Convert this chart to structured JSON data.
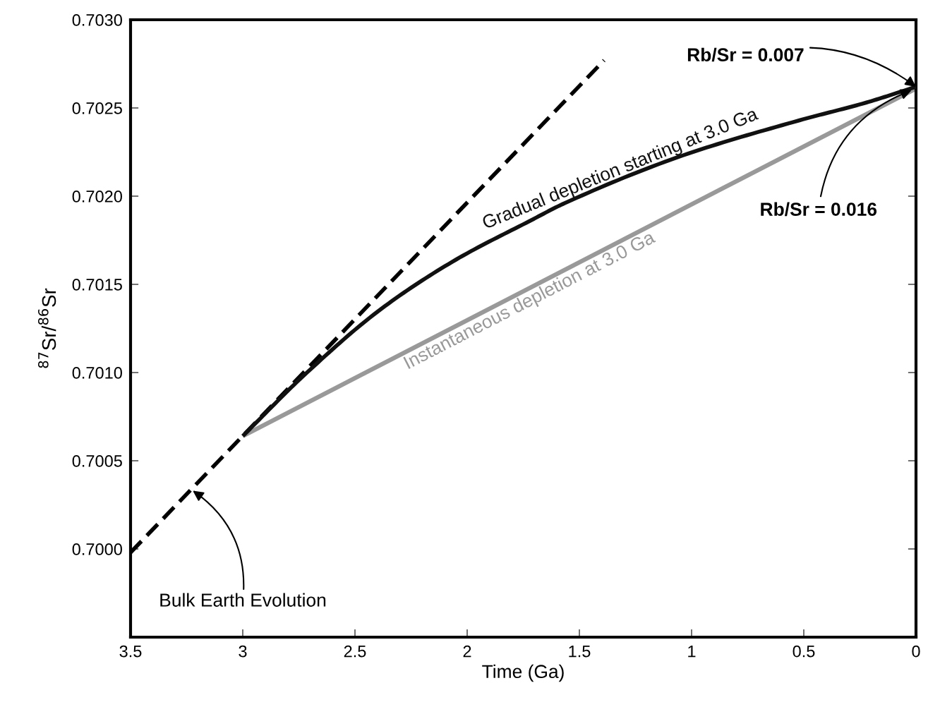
{
  "chart_data": {
    "type": "line",
    "xlabel": "Time (Ga)",
    "ylabel": "$^{87}$Sr/$^{86}$Sr",
    "xlim": [
      3.5,
      0
    ],
    "xticks": [
      3.5,
      3,
      2.5,
      2,
      1.5,
      1,
      0.5,
      0
    ],
    "ylim": [
      0.6995,
      0.703
    ],
    "yticks": [
      {
        "value": 0.7,
        "label": "0.7000"
      },
      {
        "value": 0.7005,
        "label": "0.7005"
      },
      {
        "value": 0.701,
        "label": "0.7010"
      },
      {
        "value": 0.7015,
        "label": "0.7015"
      },
      {
        "value": 0.702,
        "label": "0.7020"
      },
      {
        "value": 0.7025,
        "label": "0.7025"
      },
      {
        "value": 0.703,
        "label": "0.7030"
      }
    ],
    "grid": false,
    "legend": false,
    "marker": "none",
    "series": [
      {
        "name": "Bulk Earth Evolution",
        "color": "#000000",
        "line_style": "dashed",
        "x": [
          3.5,
          1.39
        ],
        "values": [
          0.69998,
          0.70277
        ]
      },
      {
        "name": "Instantaneous depletion at 3.0 Ga",
        "color": "#999999",
        "line_style": "solid",
        "x": [
          3.0,
          0
        ],
        "values": [
          0.70064,
          0.70261
        ]
      },
      {
        "name": "Gradual depletion starting at 3.0 Ga",
        "color": "#111111",
        "line_style": "solid",
        "x": [
          3.0,
          2.714,
          2.384,
          2.05,
          1.72,
          1.566,
          1.041,
          0.519,
          0.223,
          0
        ],
        "values": [
          0.70064,
          0.701,
          0.70136,
          0.70164,
          0.70186,
          0.70196,
          0.70223,
          0.70243,
          0.70253,
          0.70262
        ]
      }
    ],
    "annotations": [
      {
        "text": "Rb/Sr = 0.007",
        "x": 0,
        "y": 0.70262
      },
      {
        "text": "Rb/Sr = 0.016",
        "x": 0.02,
        "y": 0.7026
      }
    ]
  }
}
